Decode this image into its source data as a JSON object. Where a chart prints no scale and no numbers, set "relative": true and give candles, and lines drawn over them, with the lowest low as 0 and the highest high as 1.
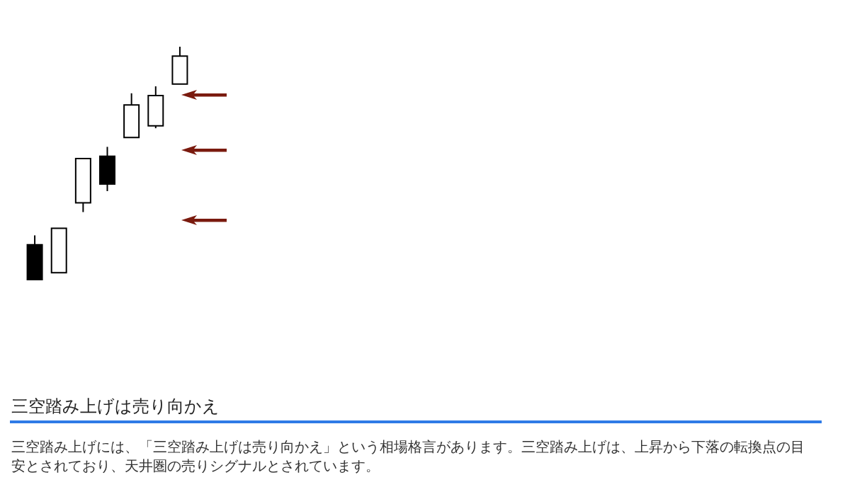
{
  "chart_data": {
    "type": "candlestick",
    "title": "三空踏み上げは売り向かえ",
    "annotations": [
      "三空踏み上げには、「三空踏み上げは売り向かえ」という相場格言があります。三空踏み上げは、上昇から下落の転換点の目安とされており、天井圏の売りシグナルとされています。"
    ],
    "categories": [
      null,
      null,
      null,
      null,
      null,
      null,
      null
    ],
    "ohlc": [
      [
        0.15,
        0.19,
        0,
        0
      ],
      [
        0.03,
        0.22,
        0.03,
        0.22
      ],
      [
        0.33,
        0.52,
        0.29,
        0.52
      ],
      [
        0.53,
        0.57,
        0.38,
        0.41
      ],
      [
        0.61,
        0.8,
        0.61,
        0.75
      ],
      [
        0.66,
        0.83,
        0.65,
        0.79
      ],
      [
        0.84,
        1,
        0.84,
        0.96
      ]
    ],
    "colors": [
      "#000000",
      "#ffffff",
      "#ffffff",
      "#000000",
      "#ffffff",
      "#ffffff",
      "#ffffff"
    ],
    "relative": true,
    "tick_labels": false
  }
}
